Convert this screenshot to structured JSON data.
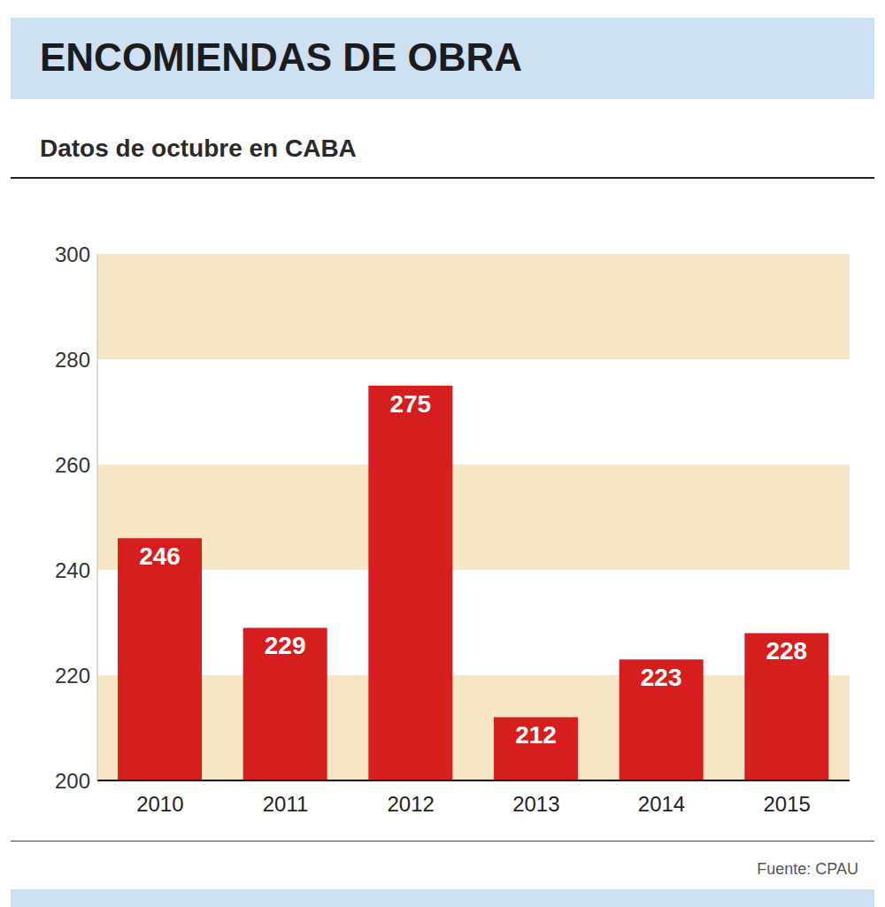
{
  "chart_data": {
    "type": "bar",
    "title": "ENCOMIENDAS DE OBRA",
    "subtitle": "Datos de octubre en CABA",
    "categories": [
      "2010",
      "2011",
      "2012",
      "2013",
      "2014",
      "2015"
    ],
    "values": [
      246,
      229,
      275,
      212,
      223,
      228
    ],
    "color": "#d71e1e",
    "ylim": [
      200,
      300
    ],
    "yticks": [
      200,
      220,
      240,
      260,
      280,
      300
    ],
    "grid": true,
    "data_labels": true,
    "source": "Fuente: CPAU"
  }
}
